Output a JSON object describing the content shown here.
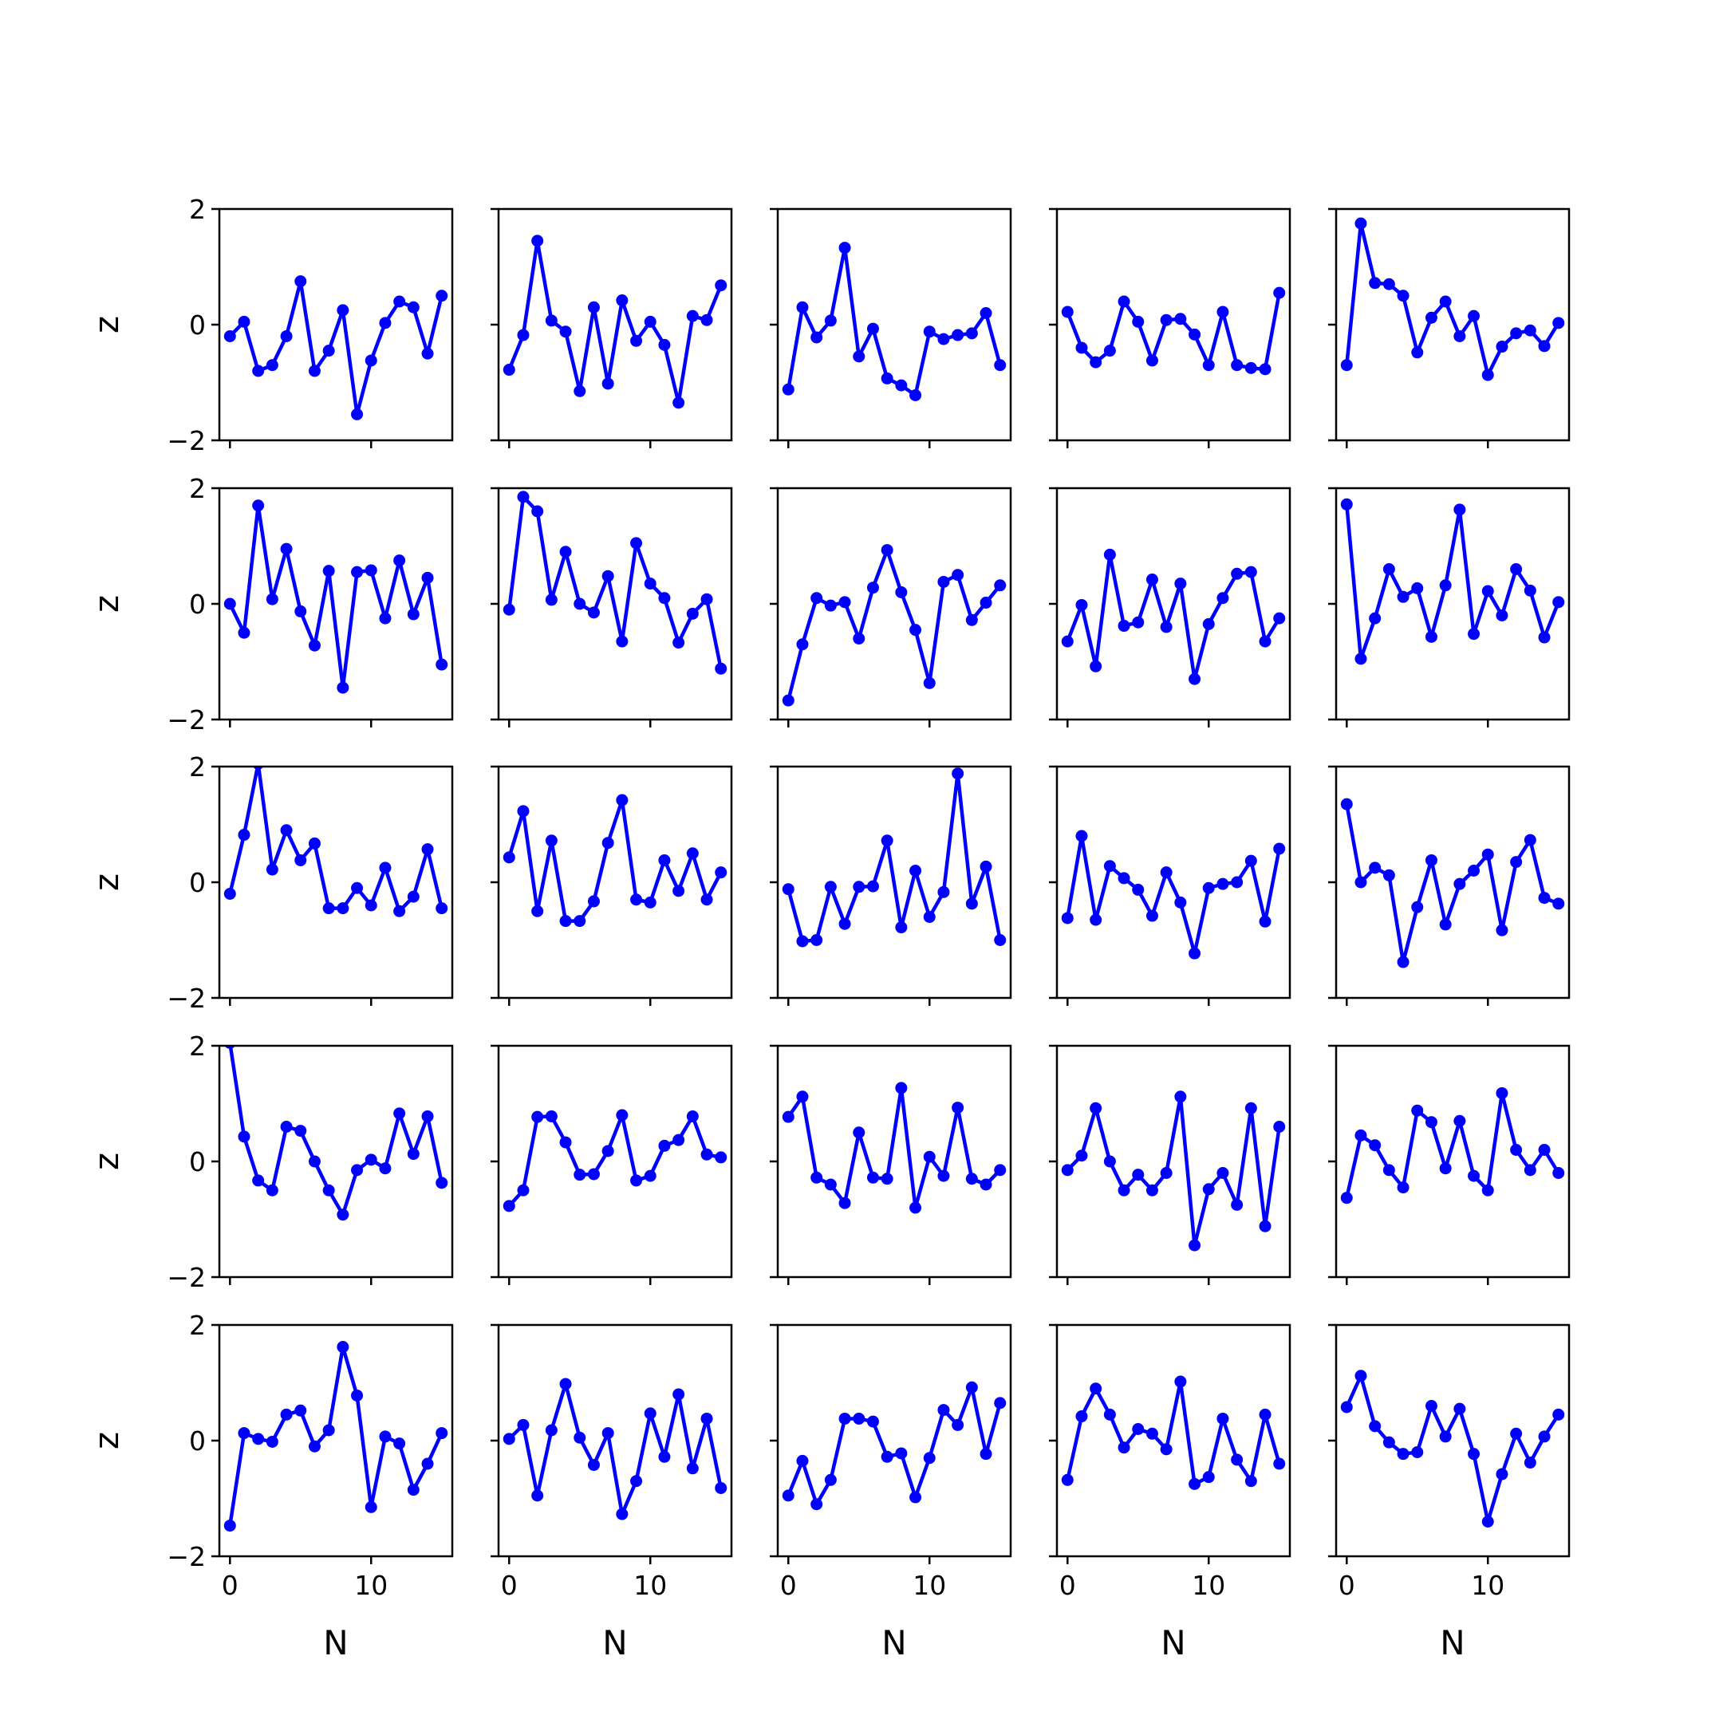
{
  "chart_data": {
    "type": "line",
    "layout": "5x5 grid of small multiples",
    "xlabel": "N",
    "ylabel": "z",
    "xlim": [
      -0.75,
      15.75
    ],
    "ylim": [
      -2,
      2
    ],
    "xticks": [
      0,
      10
    ],
    "yticks": [
      -2,
      0,
      2
    ],
    "grid": false,
    "legend": "none",
    "color": "#0000ff",
    "marker": "circle",
    "x": [
      0,
      1,
      2,
      3,
      4,
      5,
      6,
      7,
      8,
      9,
      10,
      11,
      12,
      13,
      14,
      15
    ],
    "panels": [
      [
        [
          -0.2,
          0.05,
          -0.8,
          -0.7,
          -0.2,
          0.75,
          -0.8,
          -0.45,
          0.25,
          -1.55,
          -0.62,
          0.03,
          0.4,
          0.3,
          -0.5,
          0.5
        ],
        [
          -0.78,
          -0.18,
          1.45,
          0.07,
          -0.12,
          -1.15,
          0.3,
          -1.02,
          0.42,
          -0.28,
          0.05,
          -0.35,
          -1.35,
          0.15,
          0.08,
          0.68
        ],
        [
          -1.12,
          0.3,
          -0.22,
          0.07,
          1.33,
          -0.55,
          -0.07,
          -0.93,
          -1.05,
          -1.22,
          -0.12,
          -0.25,
          -0.18,
          -0.15,
          0.2,
          -0.7
        ],
        [
          0.22,
          -0.4,
          -0.65,
          -0.45,
          0.4,
          0.05,
          -0.62,
          0.08,
          0.1,
          -0.17,
          -0.7,
          0.22,
          -0.7,
          -0.75,
          -0.77,
          0.55
        ],
        [
          -0.7,
          1.75,
          0.72,
          0.7,
          0.5,
          -0.48,
          0.12,
          0.4,
          -0.2,
          0.15,
          -0.87,
          -0.38,
          -0.15,
          -0.1,
          -0.37,
          0.03
        ]
      ],
      [
        [
          0.0,
          -0.5,
          1.7,
          0.08,
          0.95,
          -0.13,
          -0.72,
          0.57,
          -1.45,
          0.55,
          0.58,
          -0.25,
          0.75,
          -0.18,
          0.45,
          -1.05
        ],
        [
          -0.1,
          1.85,
          1.6,
          0.07,
          0.9,
          0.0,
          -0.15,
          0.48,
          -0.65,
          1.05,
          0.35,
          0.1,
          -0.67,
          -0.17,
          0.08,
          -1.12
        ],
        [
          -1.67,
          -0.7,
          0.1,
          -0.03,
          0.03,
          -0.6,
          0.28,
          0.93,
          0.2,
          -0.45,
          -1.37,
          0.38,
          0.5,
          -0.28,
          0.02,
          0.32
        ],
        [
          -0.65,
          -0.02,
          -1.08,
          0.85,
          -0.38,
          -0.32,
          0.42,
          -0.4,
          0.35,
          -1.3,
          -0.35,
          0.1,
          0.52,
          0.55,
          -0.65,
          -0.25
        ],
        [
          1.72,
          -0.95,
          -0.25,
          0.6,
          0.12,
          0.27,
          -0.57,
          0.32,
          1.63,
          -0.52,
          0.22,
          -0.2,
          0.6,
          0.23,
          -0.58,
          0.03
        ]
      ],
      [
        [
          -0.2,
          0.82,
          2.05,
          0.22,
          0.9,
          0.38,
          0.67,
          -0.45,
          -0.45,
          -0.1,
          -0.4,
          0.25,
          -0.5,
          -0.25,
          0.57,
          -0.45
        ],
        [
          0.43,
          1.23,
          -0.5,
          0.72,
          -0.67,
          -0.67,
          -0.33,
          0.68,
          1.42,
          -0.3,
          -0.35,
          0.38,
          -0.15,
          0.5,
          -0.3,
          0.17
        ],
        [
          -0.12,
          -1.02,
          -1.0,
          -0.08,
          -0.72,
          -0.08,
          -0.07,
          0.72,
          -0.78,
          0.2,
          -0.6,
          -0.17,
          1.88,
          -0.37,
          0.27,
          -1.0
        ],
        [
          -0.62,
          0.8,
          -0.65,
          0.28,
          0.07,
          -0.13,
          -0.58,
          0.17,
          -0.35,
          -1.23,
          -0.1,
          -0.03,
          0.0,
          0.37,
          -0.68,
          0.58
        ],
        [
          1.35,
          0.0,
          0.25,
          0.12,
          -1.38,
          -0.43,
          0.38,
          -0.73,
          -0.03,
          0.2,
          0.48,
          -0.83,
          0.35,
          0.73,
          -0.27,
          -0.37
        ]
      ],
      [
        [
          2.05,
          0.43,
          -0.33,
          -0.5,
          0.6,
          0.53,
          0.0,
          -0.5,
          -0.92,
          -0.15,
          0.03,
          -0.12,
          0.83,
          0.13,
          0.78,
          -0.37
        ],
        [
          -0.77,
          -0.5,
          0.77,
          0.78,
          0.33,
          -0.23,
          -0.22,
          0.18,
          0.8,
          -0.33,
          -0.25,
          0.27,
          0.37,
          0.78,
          0.12,
          0.07
        ],
        [
          0.77,
          1.12,
          -0.28,
          -0.4,
          -0.72,
          0.5,
          -0.28,
          -0.3,
          1.27,
          -0.8,
          0.08,
          -0.25,
          0.93,
          -0.3,
          -0.4,
          -0.15
        ],
        [
          -0.15,
          0.1,
          0.92,
          0.0,
          -0.5,
          -0.23,
          -0.5,
          -0.2,
          1.12,
          -1.45,
          -0.48,
          -0.2,
          -0.75,
          0.92,
          -1.12,
          0.6
        ],
        [
          -0.63,
          0.45,
          0.28,
          -0.15,
          -0.45,
          0.88,
          0.68,
          -0.12,
          0.7,
          -0.25,
          -0.5,
          1.18,
          0.2,
          -0.15,
          0.2,
          -0.2
        ]
      ],
      [
        [
          -1.47,
          0.13,
          0.03,
          -0.02,
          0.45,
          0.52,
          -0.1,
          0.18,
          1.62,
          0.78,
          -1.15,
          0.07,
          -0.05,
          -0.85,
          -0.4,
          0.13
        ],
        [
          0.03,
          0.27,
          -0.95,
          0.18,
          0.98,
          0.05,
          -0.42,
          0.13,
          -1.27,
          -0.7,
          0.47,
          -0.28,
          0.8,
          -0.48,
          0.38,
          -0.82
        ],
        [
          -0.95,
          -0.35,
          -1.1,
          -0.68,
          0.38,
          0.38,
          0.33,
          -0.28,
          -0.22,
          -0.98,
          -0.3,
          0.53,
          0.27,
          0.92,
          -0.23,
          0.65
        ],
        [
          -0.68,
          0.42,
          0.9,
          0.45,
          -0.12,
          0.2,
          0.12,
          -0.15,
          1.02,
          -0.75,
          -0.63,
          0.38,
          -0.33,
          -0.7,
          0.45,
          -0.4
        ],
        [
          0.58,
          1.12,
          0.25,
          -0.03,
          -0.23,
          -0.2,
          0.6,
          0.07,
          0.55,
          -0.23,
          -1.4,
          -0.58,
          0.12,
          -0.38,
          0.07,
          0.45
        ]
      ]
    ]
  }
}
